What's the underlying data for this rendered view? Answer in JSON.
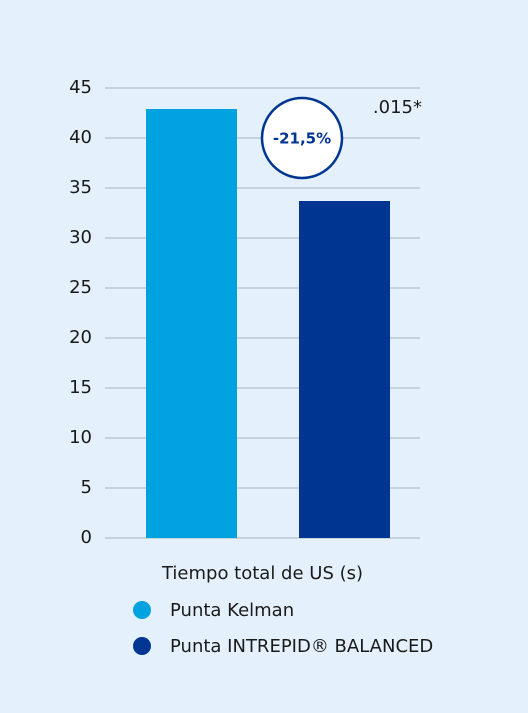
{
  "chart_data": {
    "type": "bar",
    "categories": [
      "Tiempo total de US (s)"
    ],
    "series": [
      {
        "name": "Punta Kelman",
        "color": "#00a3e0",
        "values": [
          42.9
        ]
      },
      {
        "name": "Punta INTREPID® BALANCED",
        "color": "#003591",
        "values": [
          33.7
        ]
      }
    ],
    "ylim": [
      0,
      45
    ],
    "yticks": [
      0,
      5,
      10,
      15,
      20,
      25,
      30,
      35,
      40,
      45
    ],
    "grid": true,
    "annotations": [
      "-21,5%",
      ".015*"
    ]
  }
}
